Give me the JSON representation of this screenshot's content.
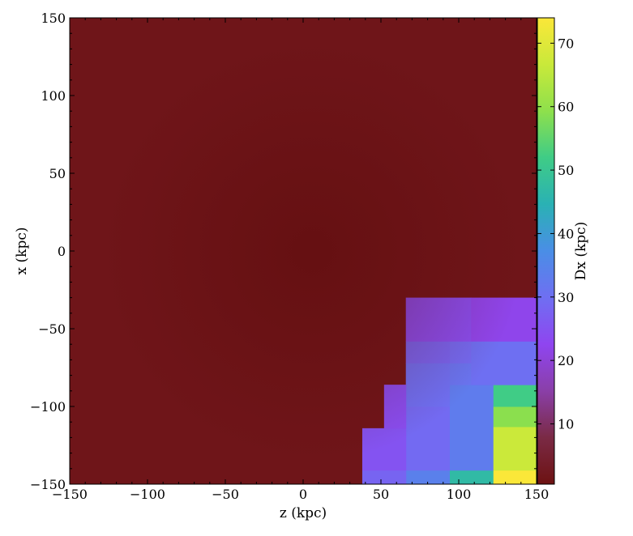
{
  "chart_data": {
    "type": "heatmap",
    "title": "",
    "xlabel": "z  (kpc)",
    "ylabel": "x  (kpc)",
    "xlim": [
      -150,
      150
    ],
    "ylim": [
      -150,
      150
    ],
    "x_ticks": [
      -150,
      -100,
      -50,
      0,
      50,
      100,
      150
    ],
    "y_ticks": [
      -150,
      -100,
      -50,
      0,
      50,
      100,
      150
    ],
    "x_tick_labels": [
      "−150",
      "−100",
      "−50",
      "0",
      "50",
      "100",
      "150"
    ],
    "y_tick_labels": [
      "−150",
      "−100",
      "−50",
      "0",
      "50",
      "100",
      "150"
    ],
    "grid": false,
    "colorbar": {
      "label": "Dx  (kpc)",
      "range": [
        0.5,
        74
      ],
      "ticks": [
        10,
        20,
        30,
        40,
        50,
        60,
        70
      ],
      "tick_labels": [
        "10",
        "20",
        "30",
        "40",
        "50",
        "60",
        "70"
      ],
      "colors": [
        "#6d1212",
        "#7a2a45",
        "#8a3fa8",
        "#8f45f0",
        "#6f6ff2",
        "#4a8ee6",
        "#2ab1b4",
        "#3fcc86",
        "#8ee04c",
        "#c9e93a",
        "#fbe739"
      ]
    },
    "background_value": 1.5,
    "cells": [
      {
        "z0": 122,
        "z1": 150,
        "x0": -150,
        "x1": -141,
        "dx": 74
      },
      {
        "z0": 122,
        "z1": 150,
        "x0": -141,
        "x1": -113,
        "dx": 67
      },
      {
        "z0": 122,
        "z1": 150,
        "x0": -113,
        "x1": -100,
        "dx": 59
      },
      {
        "z0": 122,
        "z1": 150,
        "x0": -100,
        "x1": -86,
        "dx": 52
      },
      {
        "z0": 94,
        "z1": 122,
        "x0": -150,
        "x1": -141,
        "dx": 47
      },
      {
        "z0": 94,
        "z1": 122,
        "x0": -141,
        "x1": -86,
        "dx": 33
      },
      {
        "z0": 94,
        "z1": 122,
        "x0": -86,
        "x1": -72,
        "dx": 31
      },
      {
        "z0": 94,
        "z1": 122,
        "x0": -72,
        "x1": -58,
        "dx": 29
      },
      {
        "z0": 108,
        "z1": 150,
        "x0": -86,
        "x1": -58,
        "dx": 30
      },
      {
        "z0": 66,
        "z1": 94,
        "x0": -150,
        "x1": -141,
        "dx": 34
      },
      {
        "z0": 66,
        "z1": 94,
        "x0": -141,
        "x1": -100,
        "dx": 29
      },
      {
        "z0": 66,
        "z1": 94,
        "x0": -100,
        "x1": -86,
        "dx": 30
      },
      {
        "z0": 66,
        "z1": 94,
        "x0": -86,
        "x1": -72,
        "dx": 30
      },
      {
        "z0": 66,
        "z1": 94,
        "x0": -72,
        "x1": -58,
        "dx": 28
      },
      {
        "z0": 38,
        "z1": 66,
        "x0": -150,
        "x1": -141,
        "dx": 28
      },
      {
        "z0": 38,
        "z1": 66,
        "x0": -141,
        "x1": -114,
        "dx": 25
      },
      {
        "z0": 52,
        "z1": 66,
        "x0": -114,
        "x1": -86,
        "dx": 24
      },
      {
        "z0": 66,
        "z1": 108,
        "x0": -58,
        "x1": -30,
        "dx": 24
      },
      {
        "z0": 108,
        "z1": 150,
        "x0": -58,
        "x1": -30,
        "dx": 22
      }
    ]
  }
}
